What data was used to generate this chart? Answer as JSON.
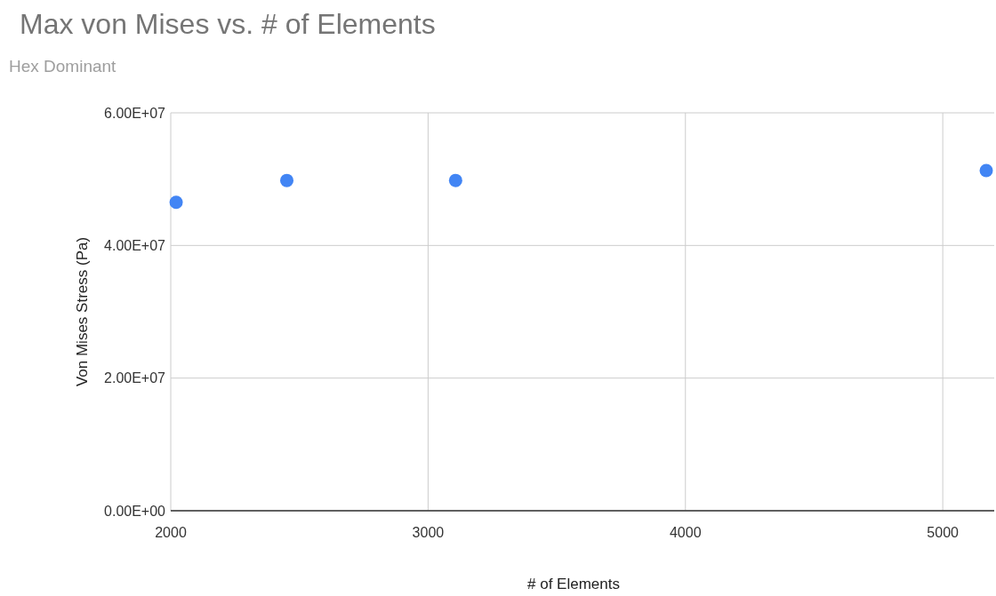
{
  "chart_data": {
    "type": "scatter",
    "title": "Max von Mises vs. # of Elements",
    "subtitle": "Hex Dominant",
    "xlabel": "# of Elements",
    "ylabel": "Von Mises Stress (Pa)",
    "x": [
      2021,
      2451,
      3107,
      5169
    ],
    "series": [
      {
        "color": "#4285f4",
        "values": [
          46500000,
          49800000,
          49800000,
          51300000
        ]
      }
    ],
    "xlim": [
      2000,
      5200
    ],
    "xticks": [
      2000,
      3000,
      4000,
      5000
    ],
    "ylim": [
      0,
      60000000
    ],
    "yticks": [
      {
        "value": 0,
        "label": "0.00E+00"
      },
      {
        "value": 20000000,
        "label": "2.00E+07"
      },
      {
        "value": 40000000,
        "label": "4.00E+07"
      },
      {
        "value": 60000000,
        "label": "6.00E+07"
      }
    ],
    "grid": true,
    "marker": "circle"
  }
}
